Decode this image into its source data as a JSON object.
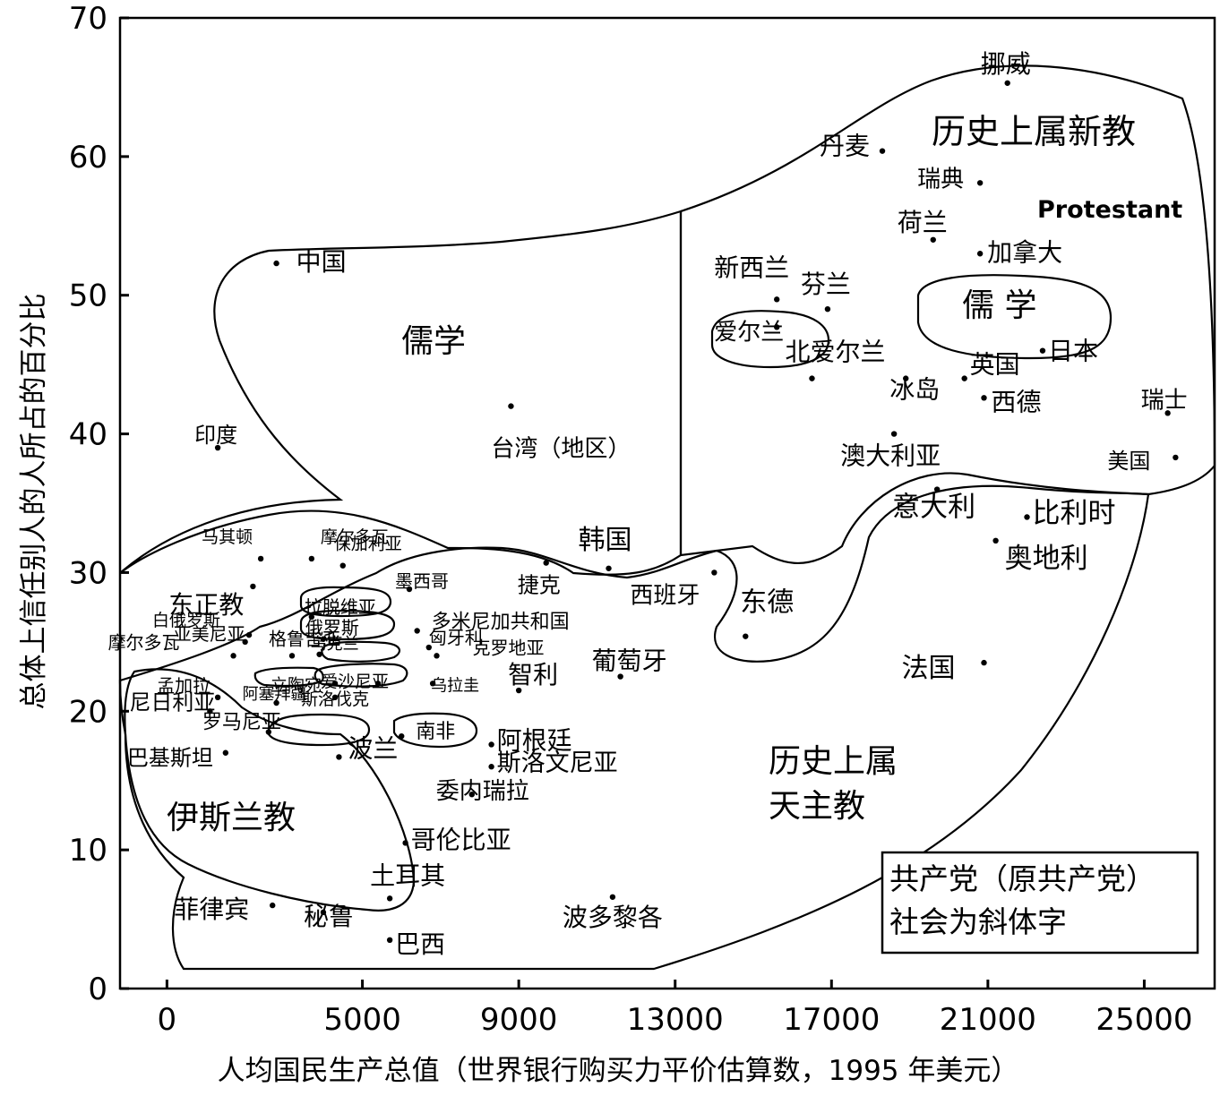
{
  "chart_data": {
    "type": "scatter",
    "title": "",
    "xlabel": "人均国民生产总值（世界银行购买力平价估算数，1995 年美元）",
    "ylabel": "总体上信任别人的人所占的百分比",
    "xlim": [
      -1200,
      26800
    ],
    "ylim": [
      0,
      70
    ],
    "xticks": [
      "0",
      "5000",
      "9000",
      "13000",
      "17000",
      "21000",
      "25000"
    ],
    "xtick_values": [
      0,
      5000,
      9000,
      13000,
      17000,
      21000,
      25000
    ],
    "yticks": [
      "0",
      "10",
      "20",
      "30",
      "40",
      "50",
      "60",
      "70"
    ],
    "ytick_values": [
      0,
      10,
      20,
      30,
      40,
      50,
      60,
      70
    ],
    "points": [
      {
        "label": "挪威",
        "x": 21500,
        "y": 65.3
      },
      {
        "label": "丹麦",
        "x": 18300,
        "y": 60.4
      },
      {
        "label": "瑞典",
        "x": 20800,
        "y": 58.1
      },
      {
        "label": "荷兰",
        "x": 19600,
        "y": 54.0
      },
      {
        "label": "加拿大",
        "x": 20800,
        "y": 53.0
      },
      {
        "label": "新西兰",
        "x": 15600,
        "y": 49.7
      },
      {
        "label": "芬兰",
        "x": 16900,
        "y": 49.0
      },
      {
        "label": "爱尔兰",
        "x": 15600,
        "y": 47.7
      },
      {
        "label": "日本",
        "x": 22400,
        "y": 46.0
      },
      {
        "label": "北爱尔兰",
        "x": 16500,
        "y": 44.0
      },
      {
        "label": "英国",
        "x": 20400,
        "y": 44.0
      },
      {
        "label": "冰岛",
        "x": 18900,
        "y": 44.0
      },
      {
        "label": "西德",
        "x": 20900,
        "y": 42.6
      },
      {
        "label": "瑞士",
        "x": 25600,
        "y": 41.5
      },
      {
        "label": "澳大利亚",
        "x": 18600,
        "y": 40.0
      },
      {
        "label": "美国",
        "x": 25800,
        "y": 38.3
      },
      {
        "label": "中国",
        "x": 2800,
        "y": 52.3
      },
      {
        "label": "台湾（地区）",
        "x": 8800,
        "y": 42.0
      },
      {
        "label": "印度",
        "x": 1300,
        "y": 39.0
      },
      {
        "label": "意大利",
        "x": 19700,
        "y": 36.0
      },
      {
        "label": "比利时",
        "x": 22000,
        "y": 34.0
      },
      {
        "label": "奥地利",
        "x": 21200,
        "y": 32.3
      },
      {
        "label": "韩国",
        "x": 11300,
        "y": 30.3
      },
      {
        "label": "西班牙",
        "x": 14000,
        "y": 30.0
      },
      {
        "label": "东德",
        "x": 14800,
        "y": 25.4
      },
      {
        "label": "法国",
        "x": 20900,
        "y": 23.5
      },
      {
        "label": "马其顿",
        "x": 2400,
        "y": 31.0
      },
      {
        "label": "摩尔多瓦",
        "x": 3700,
        "y": 31.0
      },
      {
        "label": "保加利亚",
        "x": 4500,
        "y": 30.5
      },
      {
        "label": "东正教",
        "x": 2200,
        "y": 29.0
      },
      {
        "label": "墨西哥",
        "x": 6200,
        "y": 28.8
      },
      {
        "label": "捷克",
        "x": 9700,
        "y": 30.7
      },
      {
        "label": "白俄罗斯",
        "x": 2100,
        "y": 25.5
      },
      {
        "label": "拉脱维亚",
        "x": 3700,
        "y": 26.8
      },
      {
        "label": "俄罗斯",
        "x": 4000,
        "y": 25.2
      },
      {
        "label": "多米尼加共和国",
        "x": 6400,
        "y": 25.8
      },
      {
        "label": "亚美尼亚",
        "x": 2000,
        "y": 25.0
      },
      {
        "label": "匈牙利",
        "x": 6700,
        "y": 24.6
      },
      {
        "label": "摩尔多瓦",
        "x": 1700,
        "y": 24.0
      },
      {
        "label": "格鲁吉亚",
        "x": 3200,
        "y": 24.0
      },
      {
        "label": "乌克兰",
        "x": 3900,
        "y": 24.1
      },
      {
        "label": "克罗地亚",
        "x": 6900,
        "y": 24.0
      },
      {
        "label": "孟加拉",
        "x": 1300,
        "y": 21.0
      },
      {
        "label": "阿塞拜疆",
        "x": 2800,
        "y": 20.6
      },
      {
        "label": "立陶宛",
        "x": 4300,
        "y": 22.0
      },
      {
        "label": "爱沙尼亚",
        "x": 5400,
        "y": 22.0
      },
      {
        "label": "斯洛伐克",
        "x": 4300,
        "y": 21.0
      },
      {
        "label": "乌拉圭",
        "x": 6800,
        "y": 22.0
      },
      {
        "label": "智利",
        "x": 9000,
        "y": 21.5
      },
      {
        "label": "葡萄牙",
        "x": 11600,
        "y": 22.5
      },
      {
        "label": "尼日利亚",
        "x": 1100,
        "y": 20.0
      },
      {
        "label": "罗马尼亚",
        "x": 2600,
        "y": 18.5
      },
      {
        "label": "南非",
        "x": 6000,
        "y": 18.2
      },
      {
        "label": "阿根廷",
        "x": 8300,
        "y": 17.6
      },
      {
        "label": "斯洛文尼亚",
        "x": 8300,
        "y": 16.0
      },
      {
        "label": "巴基斯坦",
        "x": 1500,
        "y": 17.0
      },
      {
        "label": "波兰",
        "x": 4400,
        "y": 16.7
      },
      {
        "label": "委内瑞拉",
        "x": 7800,
        "y": 14.0
      },
      {
        "label": "哥伦比亚",
        "x": 6100,
        "y": 10.5
      },
      {
        "label": "土耳其",
        "x": 5700,
        "y": 6.5
      },
      {
        "label": "菲律宾",
        "x": 2700,
        "y": 6.0
      },
      {
        "label": "秘鲁",
        "x": 4000,
        "y": 5.5
      },
      {
        "label": "巴西",
        "x": 5700,
        "y": 3.5
      },
      {
        "label": "波多黎各",
        "x": 11400,
        "y": 6.6
      }
    ],
    "regions": [
      {
        "label": "历史上属新教",
        "group": "protestant"
      },
      {
        "label": "Protestant",
        "group": "protestant"
      },
      {
        "label": "儒学",
        "group": "confucian"
      },
      {
        "label": "儒 学",
        "group": "confucian-japan"
      },
      {
        "label": "伊斯兰教",
        "group": "islam"
      },
      {
        "label": "历史上属",
        "group": "catholic"
      },
      {
        "label": "天主教",
        "group": "catholic"
      }
    ],
    "legend_box": [
      "共产党（原共产党）",
      "社会为斜体字"
    ],
    "legend_position": "bottom-right",
    "grid": false
  }
}
